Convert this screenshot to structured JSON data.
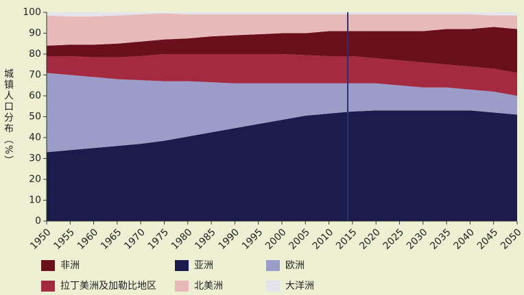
{
  "chart_data": {
    "type": "stacked_area",
    "ylabel": "城镇人口分布（%）",
    "x": [
      1950,
      1955,
      1960,
      1965,
      1970,
      1975,
      1980,
      1985,
      1990,
      1995,
      2000,
      2005,
      2010,
      2015,
      2020,
      2025,
      2030,
      2035,
      2040,
      2045,
      2050
    ],
    "xlim": [
      1950,
      2050
    ],
    "xticks": [
      1950,
      1955,
      1960,
      1965,
      1970,
      1975,
      1980,
      1985,
      1990,
      1995,
      2000,
      2005,
      2010,
      2015,
      2020,
      2025,
      2030,
      2035,
      2040,
      2045,
      2050
    ],
    "ylim": [
      0,
      100
    ],
    "yticks": [
      0,
      10,
      20,
      30,
      40,
      50,
      60,
      70,
      80,
      90,
      100
    ],
    "reference_line_x": 2014,
    "reference_line_color": "#2a3070",
    "series": [
      {
        "name": "亚洲",
        "color": "#1b1b4d",
        "values": [
          33,
          34,
          35,
          36,
          37,
          38.5,
          40.5,
          42.5,
          44.5,
          46.5,
          48.5,
          50.5,
          51.5,
          52.5,
          53,
          53,
          53,
          53,
          53,
          52,
          51
        ]
      },
      {
        "name": "欧洲",
        "color": "#9c9cc8",
        "values": [
          38,
          36,
          34,
          32,
          30.5,
          28.5,
          26.5,
          24,
          21.5,
          19.5,
          17.5,
          15.5,
          14.5,
          13.5,
          13,
          12,
          11,
          11,
          10,
          10,
          9
        ]
      },
      {
        "name": "拉丁美洲及加勒比地区",
        "color": "#a32a40",
        "values": [
          8,
          9,
          9.5,
          10.5,
          11.5,
          13,
          13,
          13.5,
          14,
          14,
          14,
          13.5,
          13,
          13,
          12,
          12,
          12,
          11,
          11,
          11,
          11
        ]
      },
      {
        "name": "非洲",
        "color": "#6a0f1c",
        "values": [
          5,
          5.5,
          6,
          6.5,
          7,
          7,
          7.5,
          8.5,
          9,
          9.5,
          10,
          10.5,
          12,
          12,
          13,
          14,
          15,
          17,
          18,
          20,
          21
        ]
      },
      {
        "name": "北美洲",
        "color": "#e8b9b9",
        "values": [
          14.5,
          13.5,
          13.5,
          13.5,
          13,
          12.5,
          11.5,
          10.5,
          10,
          9.5,
          9,
          9,
          8,
          8,
          8,
          8,
          8,
          7,
          7,
          5.5,
          6.5
        ]
      },
      {
        "name": "大洋洲",
        "color": "#e3e4ec",
        "values": [
          1.5,
          2,
          2,
          1.5,
          1,
          0.5,
          1,
          1,
          1,
          1,
          1,
          1,
          1,
          1,
          1,
          1,
          1,
          1,
          1,
          1.5,
          1.5
        ]
      }
    ],
    "legend_order": [
      3,
      0,
      1,
      2,
      4,
      5
    ]
  }
}
